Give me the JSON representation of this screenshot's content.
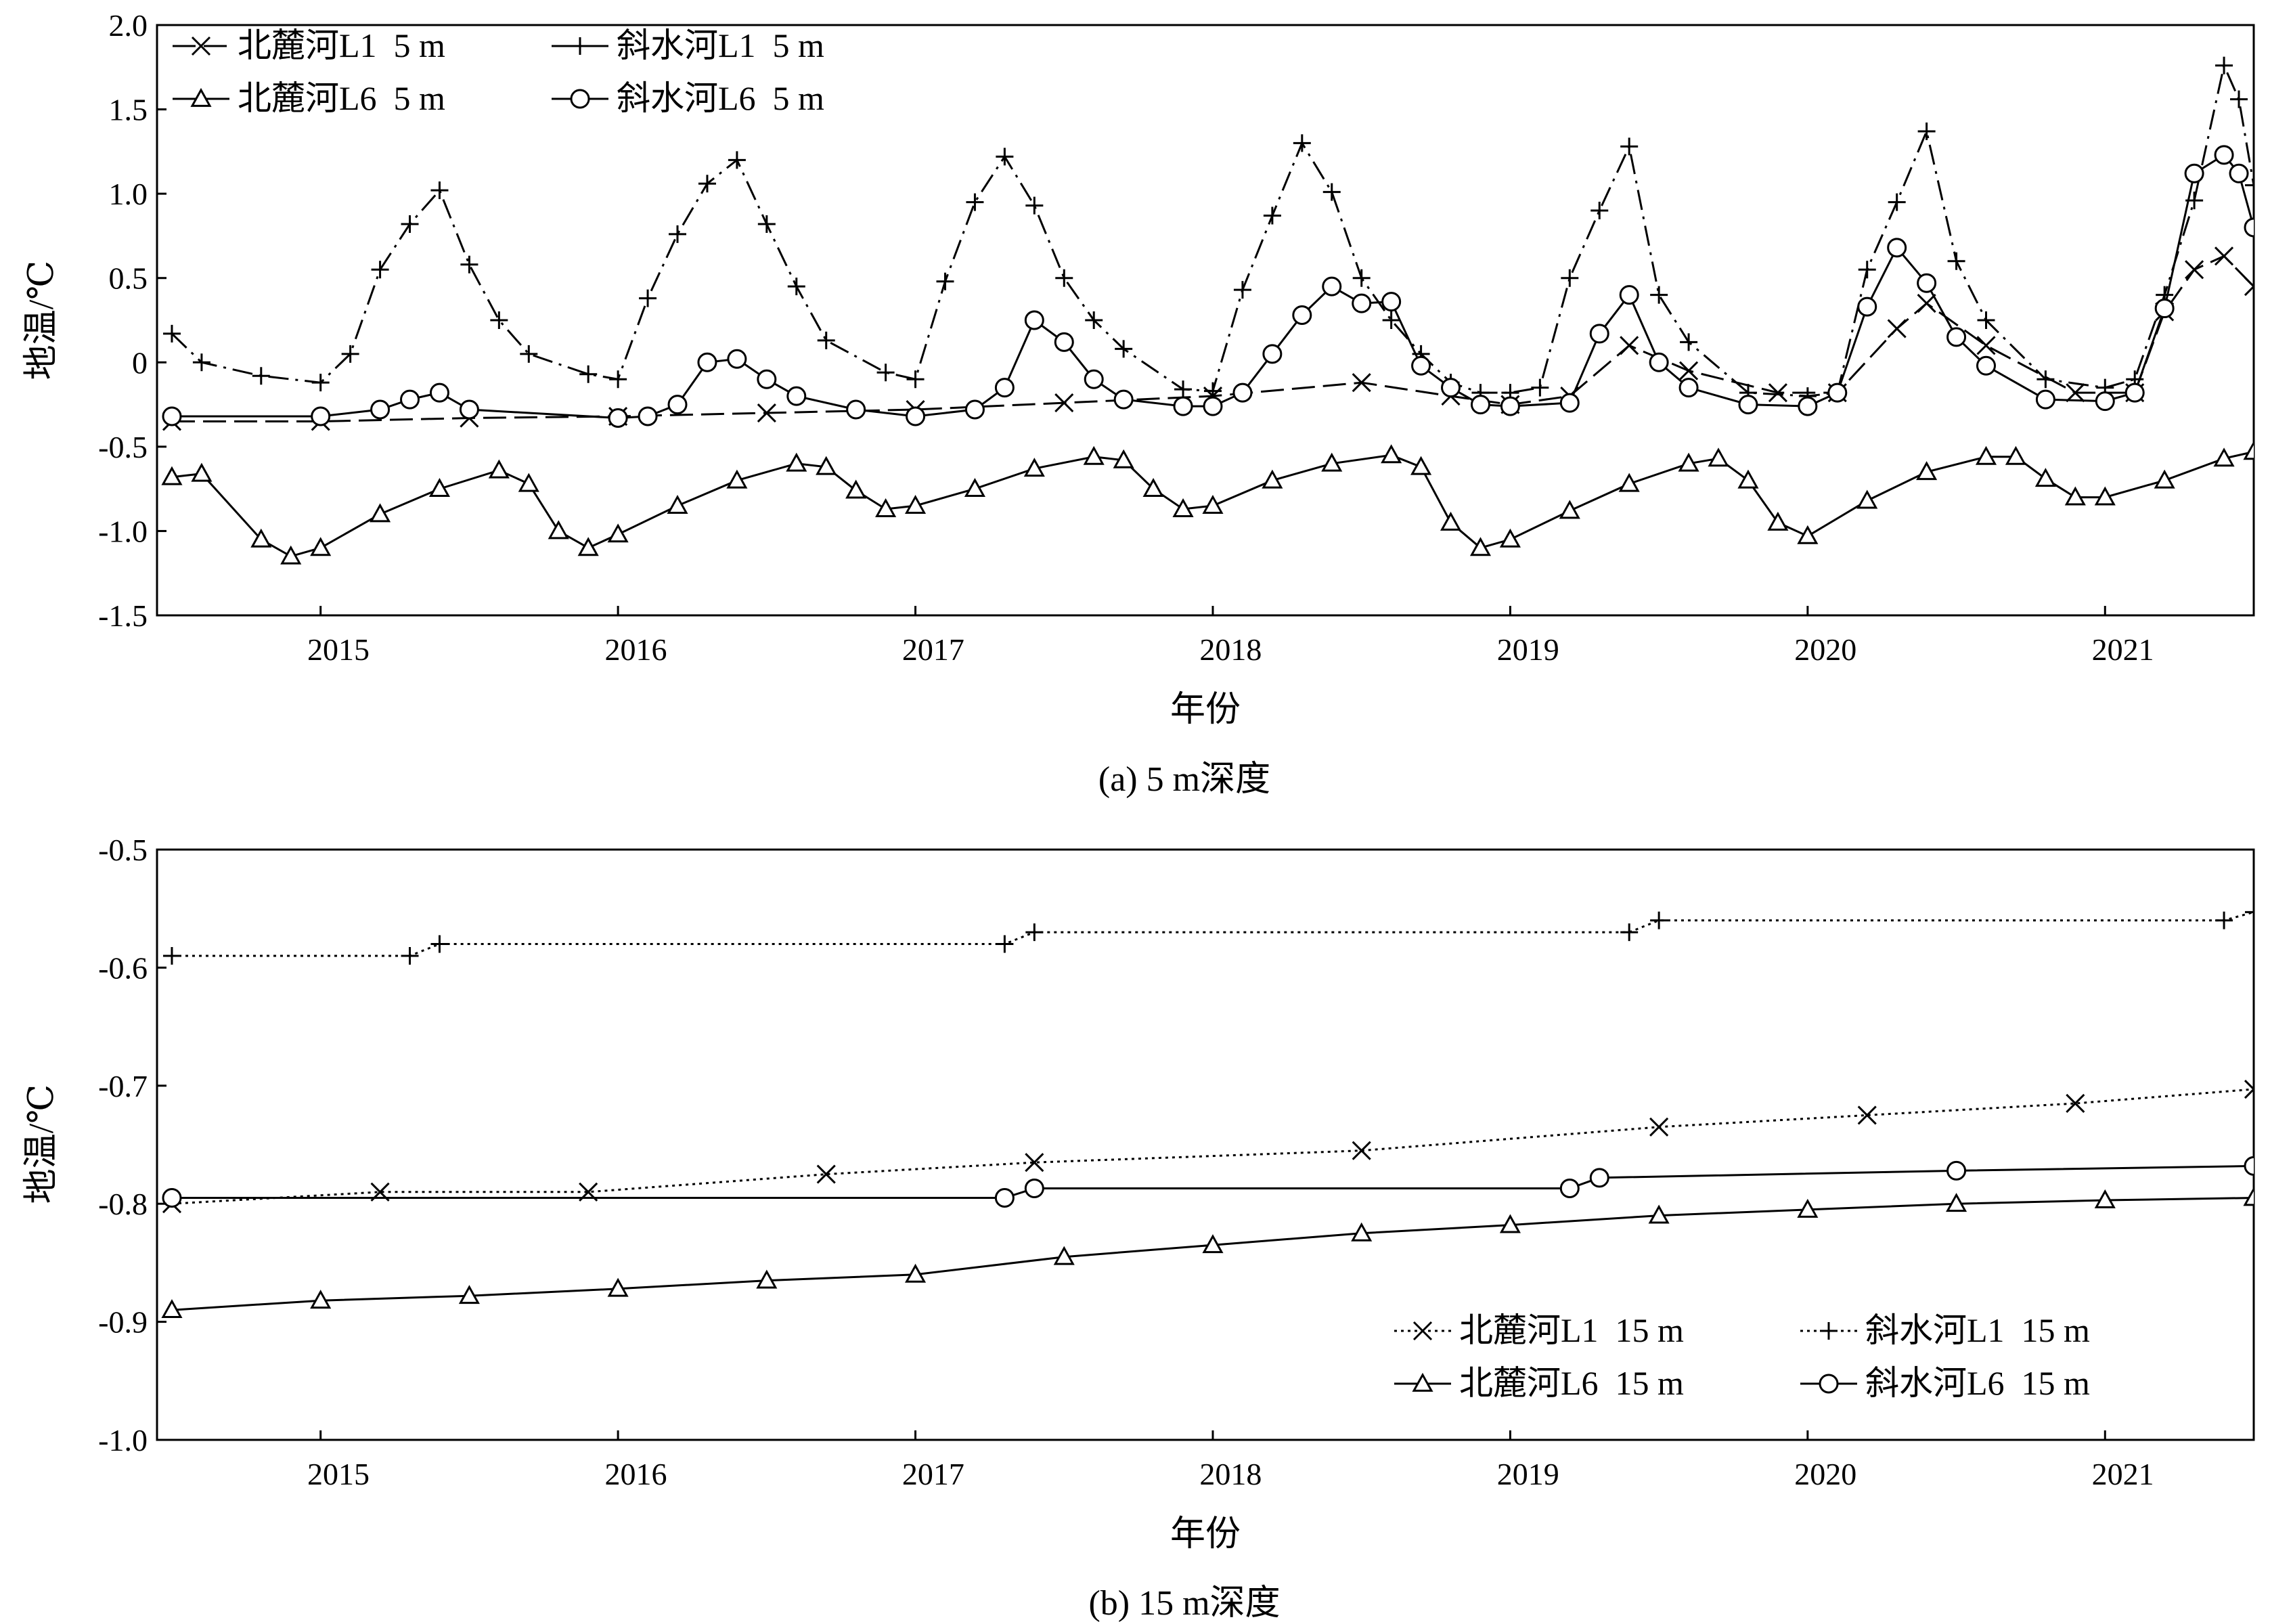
{
  "chart_data": [
    {
      "id": "a",
      "type": "line",
      "caption": "(a) 5 m深度",
      "xlabel": "年份",
      "ylabel": "地温/℃",
      "xlim": [
        2014.45,
        2021.5
      ],
      "ylim": [
        -1.5,
        2.0
      ],
      "x_ticks": [
        2015,
        2016,
        2017,
        2018,
        2019,
        2020,
        2021
      ],
      "y_ticks": [
        -1.5,
        -1.0,
        -0.5,
        0,
        0.5,
        1.0,
        1.5,
        2.0
      ],
      "y_tick_labels": [
        "-1.5",
        "-1.0",
        "-0.5",
        "0",
        "0.5",
        "1.0",
        "1.5",
        "2.0"
      ],
      "grid": false,
      "legend_position": "top-left",
      "series": [
        {
          "name": "北麓河L1  5 m",
          "marker": "x",
          "dash": "long-dash",
          "x": [
            2014.5,
            2015.0,
            2015.5,
            2016.0,
            2016.5,
            2017.0,
            2017.5,
            2018.0,
            2018.5,
            2018.8,
            2019.0,
            2019.2,
            2019.4,
            2019.6,
            2019.9,
            2020.1,
            2020.3,
            2020.4,
            2020.6,
            2020.9,
            2021.1,
            2021.2,
            2021.3,
            2021.4,
            2021.5
          ],
          "y": [
            -0.35,
            -0.35,
            -0.33,
            -0.32,
            -0.3,
            -0.28,
            -0.24,
            -0.2,
            -0.12,
            -0.2,
            -0.25,
            -0.2,
            0.1,
            -0.05,
            -0.18,
            -0.18,
            0.2,
            0.35,
            0.1,
            -0.18,
            -0.18,
            0.3,
            0.55,
            0.63,
            0.45
          ]
        },
        {
          "name": "斜水河L1  5 m",
          "marker": "plus",
          "dash": "dash-dot",
          "x": [
            2014.5,
            2014.6,
            2014.8,
            2015.0,
            2015.1,
            2015.2,
            2015.3,
            2015.4,
            2015.5,
            2015.6,
            2015.7,
            2015.9,
            2016.0,
            2016.1,
            2016.2,
            2016.3,
            2016.4,
            2016.5,
            2016.6,
            2016.7,
            2016.9,
            2017.0,
            2017.1,
            2017.2,
            2017.3,
            2017.4,
            2017.5,
            2017.6,
            2017.7,
            2017.9,
            2018.0,
            2018.1,
            2018.2,
            2018.3,
            2018.4,
            2018.5,
            2018.6,
            2018.7,
            2018.8,
            2018.9,
            2019.0,
            2019.1,
            2019.2,
            2019.3,
            2019.4,
            2019.5,
            2019.6,
            2019.8,
            2020.0,
            2020.1,
            2020.2,
            2020.3,
            2020.4,
            2020.5,
            2020.6,
            2020.8,
            2021.0,
            2021.1,
            2021.2,
            2021.3,
            2021.4,
            2021.45,
            2021.5
          ],
          "y": [
            0.17,
            0.0,
            -0.08,
            -0.12,
            0.05,
            0.55,
            0.82,
            1.02,
            0.58,
            0.25,
            0.05,
            -0.07,
            -0.1,
            0.38,
            0.76,
            1.06,
            1.2,
            0.82,
            0.45,
            0.13,
            -0.06,
            -0.1,
            0.48,
            0.95,
            1.22,
            0.93,
            0.5,
            0.25,
            0.08,
            -0.16,
            -0.17,
            0.43,
            0.87,
            1.3,
            1.01,
            0.5,
            0.25,
            0.05,
            -0.12,
            -0.18,
            -0.18,
            -0.15,
            0.5,
            0.9,
            1.28,
            0.4,
            0.12,
            -0.18,
            -0.2,
            -0.18,
            0.55,
            0.95,
            1.37,
            0.6,
            0.25,
            -0.1,
            -0.15,
            -0.1,
            0.4,
            0.96,
            1.76,
            1.56,
            1.05
          ]
        },
        {
          "name": "北麓河L6  5 m",
          "marker": "triangle",
          "dash": "solid",
          "x": [
            2014.5,
            2014.6,
            2014.8,
            2014.9,
            2015.0,
            2015.2,
            2015.4,
            2015.6,
            2015.7,
            2015.8,
            2015.9,
            2016.0,
            2016.2,
            2016.4,
            2016.6,
            2016.7,
            2016.8,
            2016.9,
            2017.0,
            2017.2,
            2017.4,
            2017.6,
            2017.7,
            2017.8,
            2017.9,
            2018.0,
            2018.2,
            2018.4,
            2018.6,
            2018.7,
            2018.8,
            2018.9,
            2019.0,
            2019.2,
            2019.4,
            2019.6,
            2019.7,
            2019.8,
            2019.9,
            2020.0,
            2020.2,
            2020.4,
            2020.6,
            2020.7,
            2020.8,
            2020.9,
            2021.0,
            2021.2,
            2021.4,
            2021.5
          ],
          "y": [
            -0.68,
            -0.66,
            -1.05,
            -1.15,
            -1.1,
            -0.9,
            -0.75,
            -0.64,
            -0.72,
            -1.0,
            -1.1,
            -1.02,
            -0.85,
            -0.7,
            -0.6,
            -0.62,
            -0.76,
            -0.87,
            -0.85,
            -0.75,
            -0.63,
            -0.56,
            -0.58,
            -0.75,
            -0.87,
            -0.85,
            -0.7,
            -0.6,
            -0.55,
            -0.62,
            -0.95,
            -1.1,
            -1.05,
            -0.88,
            -0.72,
            -0.6,
            -0.57,
            -0.7,
            -0.95,
            -1.03,
            -0.82,
            -0.65,
            -0.56,
            -0.56,
            -0.69,
            -0.8,
            -0.8,
            -0.7,
            -0.57,
            -0.53
          ]
        },
        {
          "name": "斜水河L6  5 m",
          "marker": "circle",
          "dash": "solid",
          "x": [
            2014.5,
            2015.0,
            2015.2,
            2015.3,
            2015.4,
            2015.5,
            2016.0,
            2016.1,
            2016.2,
            2016.3,
            2016.4,
            2016.5,
            2016.6,
            2016.8,
            2017.0,
            2017.2,
            2017.3,
            2017.4,
            2017.5,
            2017.6,
            2017.7,
            2017.9,
            2018.0,
            2018.1,
            2018.2,
            2018.3,
            2018.4,
            2018.5,
            2018.6,
            2018.7,
            2018.8,
            2018.9,
            2019.0,
            2019.2,
            2019.3,
            2019.4,
            2019.5,
            2019.6,
            2019.8,
            2020.0,
            2020.1,
            2020.2,
            2020.3,
            2020.4,
            2020.5,
            2020.6,
            2020.8,
            2021.0,
            2021.1,
            2021.2,
            2021.3,
            2021.4,
            2021.45,
            2021.5
          ],
          "y": [
            -0.32,
            -0.32,
            -0.28,
            -0.22,
            -0.18,
            -0.28,
            -0.33,
            -0.32,
            -0.25,
            0.0,
            0.02,
            -0.1,
            -0.2,
            -0.28,
            -0.32,
            -0.28,
            -0.15,
            0.25,
            0.12,
            -0.1,
            -0.22,
            -0.26,
            -0.26,
            -0.18,
            0.05,
            0.28,
            0.45,
            0.35,
            0.36,
            -0.02,
            -0.15,
            -0.25,
            -0.26,
            -0.24,
            0.17,
            0.4,
            0.0,
            -0.15,
            -0.25,
            -0.26,
            -0.18,
            0.33,
            0.68,
            0.47,
            0.15,
            -0.02,
            -0.22,
            -0.23,
            -0.18,
            0.32,
            1.12,
            1.23,
            1.12,
            0.8
          ]
        }
      ]
    },
    {
      "id": "b",
      "type": "line",
      "caption": "(b) 15 m深度",
      "xlabel": "年份",
      "ylabel": "地温/℃",
      "xlim": [
        2014.45,
        2021.5
      ],
      "ylim": [
        -1.0,
        -0.5
      ],
      "x_ticks": [
        2015,
        2016,
        2017,
        2018,
        2019,
        2020,
        2021
      ],
      "y_ticks": [
        -1.0,
        -0.9,
        -0.8,
        -0.7,
        -0.6,
        -0.5
      ],
      "y_tick_labels": [
        "-1.0",
        "-0.9",
        "-0.8",
        "-0.7",
        "-0.6",
        "-0.5"
      ],
      "grid": false,
      "legend_position": "bottom-right",
      "series": [
        {
          "name": "北麓河L1  15 m",
          "marker": "x",
          "dash": "dotted",
          "x": [
            2014.5,
            2015.2,
            2015.9,
            2016.7,
            2017.4,
            2018.5,
            2019.5,
            2020.2,
            2020.9,
            2021.5
          ],
          "y": [
            -0.8,
            -0.79,
            -0.79,
            -0.775,
            -0.765,
            -0.755,
            -0.735,
            -0.725,
            -0.715,
            -0.703
          ]
        },
        {
          "name": "斜水河L1  15 m",
          "marker": "plus",
          "dash": "dotted",
          "x": [
            2014.5,
            2015.3,
            2015.4,
            2017.3,
            2017.4,
            2019.4,
            2019.5,
            2021.4,
            2021.5
          ],
          "y": [
            -0.59,
            -0.59,
            -0.58,
            -0.58,
            -0.57,
            -0.57,
            -0.56,
            -0.56,
            -0.553
          ]
        },
        {
          "name": "北麓河L6  15 m",
          "marker": "triangle",
          "dash": "solid",
          "x": [
            2014.5,
            2015.0,
            2015.5,
            2016.0,
            2016.5,
            2017.0,
            2017.5,
            2018.0,
            2018.5,
            2019.0,
            2019.5,
            2020.0,
            2020.5,
            2021.0,
            2021.5
          ],
          "y": [
            -0.89,
            -0.882,
            -0.878,
            -0.872,
            -0.865,
            -0.86,
            -0.845,
            -0.835,
            -0.825,
            -0.818,
            -0.81,
            -0.805,
            -0.8,
            -0.797,
            -0.795
          ]
        },
        {
          "name": "斜水河L6  15 m",
          "marker": "circle",
          "dash": "solid",
          "x": [
            2014.5,
            2017.3,
            2017.4,
            2019.2,
            2019.3,
            2020.5,
            2021.5
          ],
          "y": [
            -0.795,
            -0.795,
            -0.787,
            -0.787,
            -0.778,
            -0.772,
            -0.768
          ]
        }
      ]
    }
  ]
}
